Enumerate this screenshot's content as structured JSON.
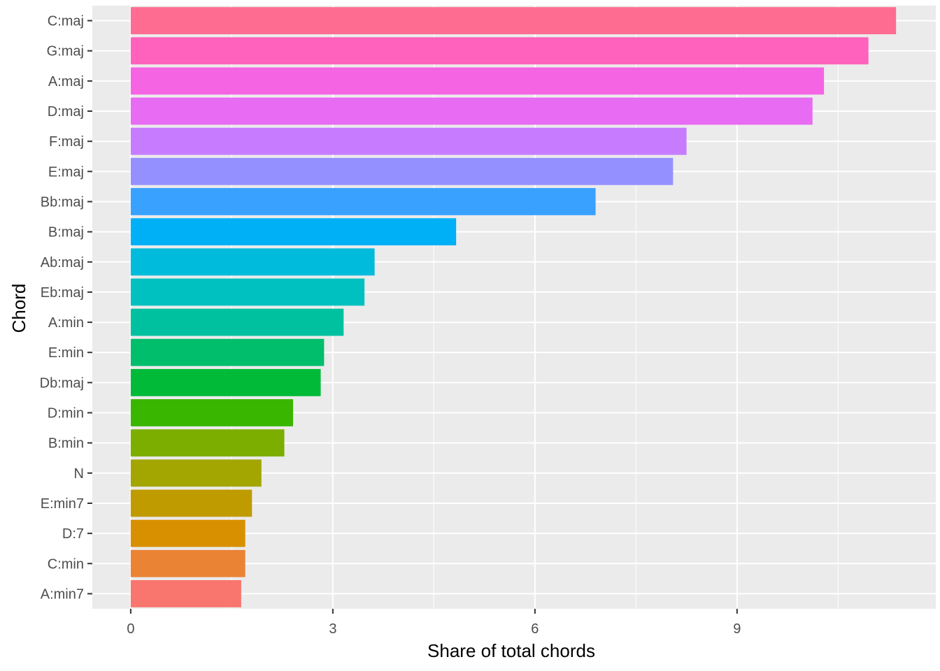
{
  "chart_data": {
    "type": "bar",
    "orientation": "horizontal",
    "title": "",
    "xlabel": "Share of total chords",
    "ylabel": "Chord",
    "xlim": [
      -0.57,
      11.95
    ],
    "xticks": [
      0,
      3,
      6,
      9
    ],
    "grid": true,
    "legend": "none",
    "panel_background": "#ebebeb",
    "categories": [
      "C:maj",
      "G:maj",
      "A:maj",
      "D:maj",
      "F:maj",
      "E:maj",
      "Bb:maj",
      "B:maj",
      "Ab:maj",
      "Eb:maj",
      "A:min",
      "E:min",
      "Db:maj",
      "D:min",
      "B:min",
      "N",
      "E:min7",
      "D:7",
      "C:min",
      "A:min7"
    ],
    "values": [
      11.36,
      10.95,
      10.29,
      10.12,
      8.25,
      8.05,
      6.9,
      4.83,
      3.62,
      3.47,
      3.16,
      2.87,
      2.82,
      2.41,
      2.28,
      1.94,
      1.8,
      1.7,
      1.7,
      1.64
    ],
    "colors": [
      "#FF6C91",
      "#FF62BC",
      "#F564E3",
      "#E76BF3",
      "#C77CFF",
      "#9590FF",
      "#39A1FF",
      "#00B0F6",
      "#00BBDC",
      "#00C1C0",
      "#00C19F",
      "#00BE6C",
      "#00BA38",
      "#39B600",
      "#7CAE00",
      "#A3A500",
      "#BF9B00",
      "#D89000",
      "#EB8335",
      "#F8766D"
    ]
  }
}
